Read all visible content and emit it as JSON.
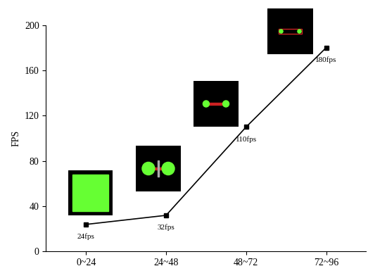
{
  "chart_data": {
    "type": "line",
    "y_label": "FPS",
    "categories": [
      "0~24",
      "24~48",
      "48~72",
      "72~96"
    ],
    "values": [
      24,
      32,
      110,
      180
    ],
    "value_labels": [
      "24fps",
      "32fps",
      "110fps",
      "180fps"
    ],
    "data_labels": true,
    "color": "#000000",
    "marker": "square",
    "line_style": "solid",
    "ylim": [
      0,
      200
    ],
    "yticks": [
      0,
      40,
      80,
      120,
      160,
      200
    ],
    "grid": false
  }
}
